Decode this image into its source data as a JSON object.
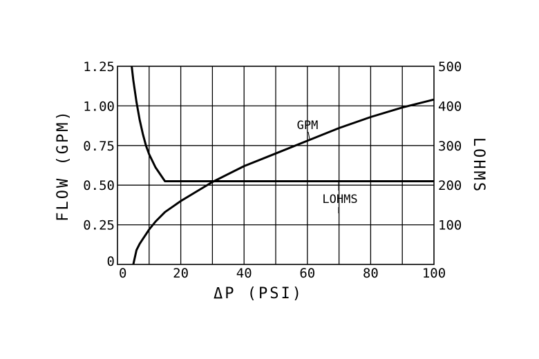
{
  "chart_data": {
    "type": "line",
    "xlabel": "ΔP  (PSI)",
    "ylabel_left": "FLOW  (GPM)",
    "ylabel_right": "LOHMS",
    "xlim": [
      0,
      100
    ],
    "ylim_left": [
      0,
      1.25
    ],
    "ylim_right": [
      0,
      500
    ],
    "x_ticks": [
      "0",
      "20",
      "40",
      "60",
      "80",
      "100"
    ],
    "y_left_ticks": [
      "0",
      "0.25",
      "0.50",
      "0.75",
      "1.00",
      "1.25"
    ],
    "y_right_ticks": [
      "100",
      "200",
      "300",
      "400",
      "500"
    ],
    "grid": true,
    "series": [
      {
        "name": "GPM",
        "axis": "left",
        "x": [
          5,
          6,
          7,
          8,
          10,
          12,
          15,
          20,
          25,
          30,
          40,
          50,
          60,
          70,
          80,
          90,
          100
        ],
        "y": [
          0,
          0.09,
          0.13,
          0.16,
          0.22,
          0.27,
          0.33,
          0.4,
          0.46,
          0.52,
          0.62,
          0.7,
          0.78,
          0.86,
          0.93,
          0.99,
          1.04
        ]
      },
      {
        "name": "LOHMS",
        "axis": "right",
        "x": [
          4.5,
          5,
          6,
          7,
          8,
          9,
          10,
          12,
          15,
          20,
          40,
          60,
          80,
          100
        ],
        "y": [
          500,
          465,
          410,
          365,
          330,
          300,
          278,
          245,
          210,
          210,
          210,
          210,
          210,
          210
        ]
      }
    ],
    "annotations": [
      {
        "text": "GPM",
        "series": "GPM"
      },
      {
        "text": "LOHMS",
        "series": "LOHMS"
      }
    ]
  }
}
